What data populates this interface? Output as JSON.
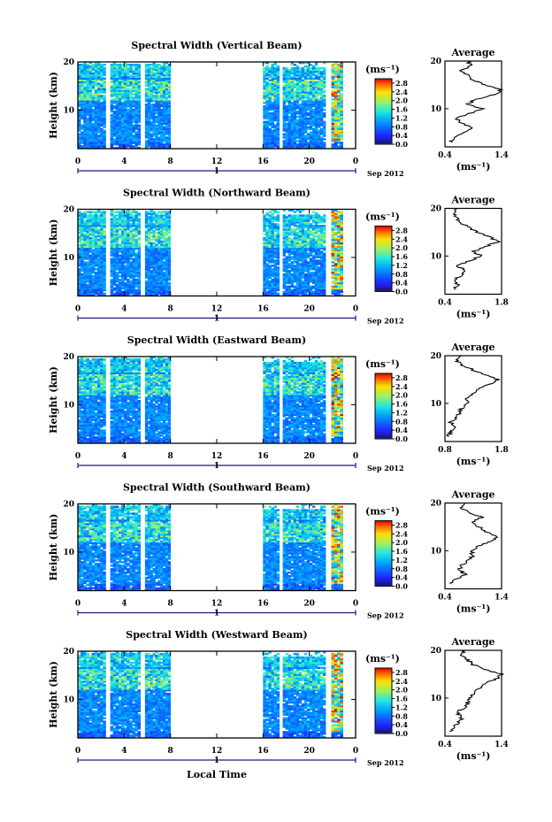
{
  "figure": {
    "footer_xlabel": "Local Time",
    "date_label": "Sep 2012",
    "day_label": "1",
    "ylabel": "Height (km)",
    "unit_label": "(ms⁻¹)",
    "avg_title": "Average",
    "avg_unit": "(ms⁻¹)"
  },
  "chart_data": [
    {
      "type": "heatmap",
      "title": "Spectral Width (Vertical Beam)",
      "x_ticks": [
        "0",
        "4",
        "8",
        "12",
        "16",
        "20",
        "0"
      ],
      "xlim": [
        0,
        24
      ],
      "y_ticks": [
        "20",
        "10"
      ],
      "ylim": [
        2,
        20
      ],
      "data_time_ranges": [
        [
          0,
          2.4
        ],
        [
          2.8,
          5.4
        ],
        [
          5.8,
          8
        ],
        [
          16,
          17.4
        ],
        [
          17.7,
          21.4
        ],
        [
          21.9,
          22.9
        ]
      ],
      "colorbar": {
        "ticks": [
          "2.8",
          "2.4",
          "2.0",
          "1.6",
          "1.2",
          "0.8",
          "0.4",
          "0.0"
        ],
        "range": [
          0,
          3.0
        ]
      },
      "average_profile": {
        "x_ticks": [
          "0.4",
          "1.4"
        ],
        "xlim": [
          0.4,
          1.4
        ],
        "y_ticks": [
          "20",
          "10"
        ],
        "ylim": [
          2,
          20
        ],
        "points": [
          [
            0.5,
            3
          ],
          [
            0.55,
            4
          ],
          [
            0.75,
            5
          ],
          [
            0.9,
            6
          ],
          [
            0.7,
            7
          ],
          [
            0.6,
            8
          ],
          [
            0.85,
            9
          ],
          [
            1.05,
            10
          ],
          [
            0.8,
            11
          ],
          [
            0.95,
            12
          ],
          [
            1.3,
            13
          ],
          [
            1.4,
            14
          ],
          [
            1.1,
            15
          ],
          [
            0.9,
            16
          ],
          [
            0.8,
            17
          ],
          [
            0.7,
            18
          ],
          [
            0.85,
            19
          ],
          [
            0.8,
            20
          ]
        ]
      }
    },
    {
      "type": "heatmap",
      "title": "Spectral Width (Northward Beam)",
      "x_ticks": [
        "0",
        "4",
        "8",
        "12",
        "16",
        "20",
        "0"
      ],
      "xlim": [
        0,
        24
      ],
      "y_ticks": [
        "20",
        "10"
      ],
      "ylim": [
        2,
        20
      ],
      "data_time_ranges": [
        [
          0,
          2.4
        ],
        [
          2.8,
          5.4
        ],
        [
          5.8,
          8
        ],
        [
          16,
          17.4
        ],
        [
          17.7,
          21.4
        ],
        [
          21.9,
          22.9
        ]
      ],
      "colorbar": {
        "ticks": [
          "2.8",
          "2.4",
          "2.0",
          "1.6",
          "1.2",
          "0.8",
          "0.4",
          "0.0"
        ],
        "range": [
          0,
          3.0
        ]
      },
      "average_profile": {
        "x_ticks": [
          "0.4",
          "1.8"
        ],
        "xlim": [
          0.4,
          1.8
        ],
        "y_ticks": [
          "20",
          "10"
        ],
        "ylim": [
          2,
          20
        ],
        "points": [
          [
            0.6,
            3
          ],
          [
            0.7,
            4
          ],
          [
            0.6,
            5
          ],
          [
            0.8,
            6
          ],
          [
            0.9,
            7
          ],
          [
            0.7,
            8
          ],
          [
            1.0,
            9
          ],
          [
            1.3,
            10
          ],
          [
            1.1,
            11
          ],
          [
            1.4,
            12
          ],
          [
            1.7,
            13
          ],
          [
            1.5,
            14
          ],
          [
            1.2,
            15
          ],
          [
            1.0,
            16
          ],
          [
            0.8,
            17
          ],
          [
            0.7,
            18
          ],
          [
            0.6,
            19
          ],
          [
            0.7,
            20
          ]
        ]
      }
    },
    {
      "type": "heatmap",
      "title": "Spectral Width (Eastward Beam)",
      "x_ticks": [
        "0",
        "4",
        "8",
        "12",
        "16",
        "20",
        "0"
      ],
      "xlim": [
        0,
        24
      ],
      "y_ticks": [
        "20",
        "10"
      ],
      "ylim": [
        2,
        20
      ],
      "data_time_ranges": [
        [
          0,
          2.4
        ],
        [
          2.8,
          5.4
        ],
        [
          5.8,
          8
        ],
        [
          16,
          17.4
        ],
        [
          17.7,
          21.4
        ],
        [
          21.9,
          22.9
        ]
      ],
      "colorbar": {
        "ticks": [
          "2.8",
          "2.4",
          "2.0",
          "1.6",
          "1.2",
          "0.8",
          "0.4",
          "0.0"
        ],
        "range": [
          0,
          3.0
        ]
      },
      "average_profile": {
        "x_ticks": [
          "0.8",
          "1.8"
        ],
        "xlim": [
          0.8,
          1.8
        ],
        "y_ticks": [
          "20",
          "10"
        ],
        "ylim": [
          2,
          20
        ],
        "points": [
          [
            0.85,
            3
          ],
          [
            0.9,
            4
          ],
          [
            0.95,
            5
          ],
          [
            0.9,
            6
          ],
          [
            1.0,
            7
          ],
          [
            1.05,
            8
          ],
          [
            1.1,
            9
          ],
          [
            1.2,
            10
          ],
          [
            1.15,
            11
          ],
          [
            1.3,
            12
          ],
          [
            1.4,
            13
          ],
          [
            1.6,
            14
          ],
          [
            1.75,
            15
          ],
          [
            1.5,
            16
          ],
          [
            1.3,
            17
          ],
          [
            1.1,
            18
          ],
          [
            1.0,
            19
          ],
          [
            1.1,
            20
          ]
        ]
      }
    },
    {
      "type": "heatmap",
      "title": "Spectral Width (Southward Beam)",
      "x_ticks": [
        "0",
        "4",
        "8",
        "12",
        "16",
        "20",
        "0"
      ],
      "xlim": [
        0,
        24
      ],
      "y_ticks": [
        "20",
        "10"
      ],
      "ylim": [
        2,
        20
      ],
      "data_time_ranges": [
        [
          0,
          2.4
        ],
        [
          2.8,
          5.4
        ],
        [
          5.8,
          8
        ],
        [
          16,
          17.4
        ],
        [
          17.7,
          21.4
        ],
        [
          21.9,
          22.9
        ]
      ],
      "colorbar": {
        "ticks": [
          "2.8",
          "2.4",
          "2.0",
          "1.6",
          "1.2",
          "0.8",
          "0.4",
          "0.0"
        ],
        "range": [
          0,
          3.0
        ]
      },
      "average_profile": {
        "x_ticks": [
          "0.4",
          "1.4"
        ],
        "xlim": [
          0.4,
          1.4
        ],
        "y_ticks": [
          "20",
          "10"
        ],
        "ylim": [
          2,
          20
        ],
        "points": [
          [
            0.5,
            3
          ],
          [
            0.6,
            4
          ],
          [
            0.75,
            5
          ],
          [
            0.65,
            6
          ],
          [
            0.7,
            7
          ],
          [
            0.8,
            8
          ],
          [
            0.9,
            9
          ],
          [
            0.85,
            10
          ],
          [
            1.0,
            11
          ],
          [
            1.2,
            12
          ],
          [
            1.35,
            13
          ],
          [
            1.1,
            14
          ],
          [
            1.0,
            15
          ],
          [
            0.9,
            16
          ],
          [
            1.05,
            17
          ],
          [
            0.8,
            18
          ],
          [
            0.7,
            19
          ],
          [
            0.75,
            20
          ]
        ]
      }
    },
    {
      "type": "heatmap",
      "title": "Spectral Width (Westward Beam)",
      "x_ticks": [
        "0",
        "4",
        "8",
        "12",
        "16",
        "20",
        "0"
      ],
      "xlim": [
        0,
        24
      ],
      "y_ticks": [
        "20",
        "10"
      ],
      "ylim": [
        2,
        20
      ],
      "data_time_ranges": [
        [
          0,
          2.4
        ],
        [
          2.8,
          5.4
        ],
        [
          5.8,
          8
        ],
        [
          16,
          17.4
        ],
        [
          17.7,
          21.4
        ],
        [
          21.9,
          22.9
        ]
      ],
      "colorbar": {
        "ticks": [
          "2.8",
          "2.4",
          "2.0",
          "1.6",
          "1.2",
          "0.8",
          "0.4",
          "0.0"
        ],
        "range": [
          0,
          3.0
        ]
      },
      "average_profile": {
        "x_ticks": [
          "0.4",
          "1.4"
        ],
        "xlim": [
          0.4,
          1.4
        ],
        "y_ticks": [
          "20",
          "10"
        ],
        "ylim": [
          2,
          20
        ],
        "points": [
          [
            0.5,
            3
          ],
          [
            0.55,
            4
          ],
          [
            0.65,
            5
          ],
          [
            0.7,
            6
          ],
          [
            0.6,
            7
          ],
          [
            0.75,
            8
          ],
          [
            0.8,
            9
          ],
          [
            0.85,
            10
          ],
          [
            0.9,
            11
          ],
          [
            1.0,
            12
          ],
          [
            1.1,
            13
          ],
          [
            1.3,
            14
          ],
          [
            1.4,
            15
          ],
          [
            1.1,
            16
          ],
          [
            0.9,
            17
          ],
          [
            0.8,
            18
          ],
          [
            0.7,
            19
          ],
          [
            0.75,
            20
          ]
        ]
      }
    }
  ]
}
